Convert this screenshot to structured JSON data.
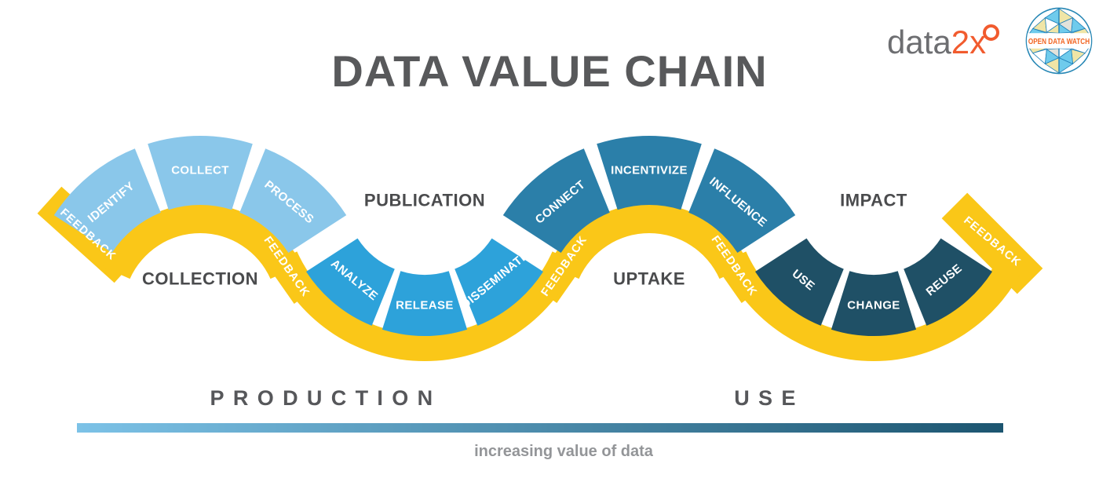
{
  "title": "DATA VALUE CHAIN",
  "logos": {
    "data2x_gray": "data",
    "data2x_orange": "2x",
    "open_data_watch": "OPEN DATA WATCH"
  },
  "chain": {
    "feedback_label": "FEEDBACK",
    "ribbon_color": "#FAC718",
    "label_color": "#4A4B4D",
    "phases": [
      {
        "label": "COLLECTION",
        "kind": "peak",
        "color": "#8AC7EA",
        "segments": [
          "IDENTIFY",
          "COLLECT",
          "PROCESS"
        ]
      },
      {
        "label": "PUBLICATION",
        "kind": "valley",
        "color": "#2DA2DA",
        "segments": [
          "ANALYZE",
          "RELEASE",
          "DISSEMINATE"
        ]
      },
      {
        "label": "UPTAKE",
        "kind": "peak",
        "color": "#2B7FA9",
        "segments": [
          "CONNECT",
          "INCENTIVIZE",
          "INFLUENCE"
        ]
      },
      {
        "label": "IMPACT",
        "kind": "valley",
        "color": "#1F5066",
        "segments": [
          "USE",
          "CHANGE",
          "REUSE"
        ]
      }
    ]
  },
  "footer": {
    "production_label": "PRODUCTION",
    "use_label": "USE",
    "caption": "increasing value of data",
    "gradient_start": "#7CC2E7",
    "gradient_end": "#1C5570"
  }
}
